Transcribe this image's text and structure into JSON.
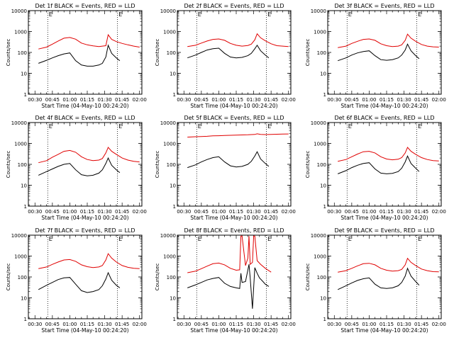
{
  "colors": {
    "events": "#000000",
    "lld": "#e00000",
    "axes": "#000000",
    "background": "#ffffff"
  },
  "shared": {
    "ylabel": "Counts/sec",
    "xlabel": "Start Time (04-May-10 00:24:20)",
    "xticks": [
      "00:30",
      "00:45",
      "01:00",
      "01:15",
      "01:30",
      "01:45",
      "02:00"
    ],
    "yticks": [
      "1",
      "10",
      "100",
      "1000",
      "10000"
    ],
    "ylog": true,
    "ylim": [
      1,
      10000
    ],
    "xlim": [
      "00:24:20",
      "02:02:00"
    ],
    "vlines": [
      "00:41",
      "01:41"
    ],
    "marker_label": "E"
  },
  "chart_data": [
    {
      "type": "line",
      "title": "Det 1f BLACK = Events, RED = LLD",
      "series": [
        {
          "x": [
            "00:33",
            "00:40",
            "00:45",
            "00:50",
            "00:55",
            "01:00",
            "01:05",
            "01:10",
            "01:15",
            "01:20",
            "01:25",
            "01:28",
            "01:31",
            "01:33",
            "01:36",
            "01:40",
            "01:45",
            "01:50",
            "01:55",
            "02:00"
          ],
          "values": [
            145,
            180,
            250,
            350,
            480,
            520,
            430,
            280,
            230,
            205,
            190,
            200,
            210,
            700,
            420,
            330,
            270,
            230,
            200,
            180
          ]
        },
        {
          "x": [
            "00:33",
            "00:40",
            "00:45",
            "00:50",
            "00:55",
            "01:00",
            "01:05",
            "01:10",
            "01:15",
            "01:20",
            "01:25",
            "01:28",
            "01:31",
            "01:33",
            "01:36",
            "01:40",
            "01:43"
          ],
          "values": [
            30,
            42,
            55,
            70,
            85,
            95,
            40,
            25,
            22,
            22,
            25,
            30,
            60,
            220,
            90,
            55,
            40
          ]
        }
      ]
    },
    {
      "type": "line",
      "title": "Det 2f BLACK = Events, RED = LLD",
      "series": [
        {
          "x": [
            "00:33",
            "00:40",
            "00:45",
            "00:50",
            "00:55",
            "01:00",
            "01:05",
            "01:10",
            "01:15",
            "01:20",
            "01:25",
            "01:28",
            "01:31",
            "01:33",
            "01:36",
            "01:40",
            "01:45",
            "01:50",
            "01:55",
            "02:00"
          ],
          "values": [
            190,
            220,
            280,
            350,
            420,
            440,
            380,
            270,
            220,
            200,
            215,
            250,
            400,
            780,
            500,
            360,
            260,
            210,
            200,
            190
          ]
        },
        {
          "x": [
            "00:33",
            "00:40",
            "00:45",
            "00:50",
            "00:55",
            "01:00",
            "01:05",
            "01:10",
            "01:15",
            "01:20",
            "01:25",
            "01:28",
            "01:31",
            "01:33",
            "01:36",
            "01:40",
            "01:43"
          ],
          "values": [
            55,
            75,
            100,
            130,
            150,
            160,
            90,
            60,
            55,
            58,
            70,
            90,
            150,
            220,
            120,
            75,
            55
          ]
        }
      ]
    },
    {
      "type": "line",
      "title": "Det 3f BLACK = Events, RED = LLD",
      "series": [
        {
          "x": [
            "00:33",
            "00:40",
            "00:45",
            "00:50",
            "00:55",
            "01:00",
            "01:05",
            "01:10",
            "01:15",
            "01:20",
            "01:25",
            "01:28",
            "01:31",
            "01:33",
            "01:36",
            "01:40",
            "01:45",
            "01:50",
            "01:55",
            "02:00"
          ],
          "values": [
            170,
            200,
            270,
            340,
            420,
            440,
            380,
            260,
            210,
            190,
            200,
            230,
            380,
            750,
            480,
            340,
            240,
            200,
            185,
            180
          ]
        },
        {
          "x": [
            "00:33",
            "00:40",
            "00:45",
            "00:50",
            "00:55",
            "01:00",
            "01:05",
            "01:10",
            "01:15",
            "01:20",
            "01:25",
            "01:28",
            "01:31",
            "01:33",
            "01:36",
            "01:40",
            "01:43"
          ],
          "values": [
            40,
            55,
            75,
            95,
            110,
            120,
            70,
            45,
            42,
            45,
            55,
            75,
            130,
            250,
            120,
            70,
            50
          ]
        }
      ]
    },
    {
      "type": "line",
      "title": "Det 4f BLACK = Events, RED = LLD",
      "series": [
        {
          "x": [
            "00:33",
            "00:40",
            "00:45",
            "00:50",
            "00:55",
            "01:00",
            "01:05",
            "01:10",
            "01:15",
            "01:20",
            "01:25",
            "01:28",
            "01:31",
            "01:33",
            "01:36",
            "01:40",
            "01:45",
            "01:50",
            "01:55",
            "02:00"
          ],
          "values": [
            120,
            150,
            220,
            300,
            420,
            460,
            380,
            230,
            170,
            150,
            160,
            190,
            350,
            650,
            420,
            300,
            200,
            160,
            140,
            130
          ]
        },
        {
          "x": [
            "00:33",
            "00:40",
            "00:45",
            "00:50",
            "00:55",
            "01:00",
            "01:05",
            "01:10",
            "01:15",
            "01:20",
            "01:25",
            "01:28",
            "01:31",
            "01:33",
            "01:36",
            "01:40",
            "01:43"
          ],
          "values": [
            30,
            45,
            60,
            80,
            100,
            110,
            55,
            32,
            28,
            30,
            38,
            55,
            110,
            200,
            90,
            55,
            40
          ]
        }
      ]
    },
    {
      "type": "line",
      "title": "Det 5f BLACK = Events, RED = LLD",
      "series": [
        {
          "x": [
            "00:33",
            "00:40",
            "00:45",
            "00:50",
            "00:55",
            "01:00",
            "01:05",
            "01:10",
            "01:15",
            "01:20",
            "01:25",
            "01:28",
            "01:31",
            "01:33",
            "01:36",
            "01:40",
            "01:45",
            "01:50",
            "01:55",
            "02:00"
          ],
          "values": [
            2000,
            2100,
            2150,
            2200,
            2300,
            2350,
            2400,
            2450,
            2500,
            2550,
            2600,
            2650,
            2700,
            2900,
            2700,
            2650,
            2700,
            2750,
            2800,
            2850
          ]
        },
        {
          "x": [
            "00:33",
            "00:40",
            "00:45",
            "00:50",
            "00:55",
            "01:00",
            "01:05",
            "01:10",
            "01:15",
            "01:20",
            "01:25",
            "01:28",
            "01:31",
            "01:33",
            "01:36",
            "01:40",
            "01:43"
          ],
          "values": [
            70,
            95,
            130,
            170,
            210,
            230,
            130,
            85,
            75,
            80,
            100,
            140,
            250,
            400,
            180,
            110,
            80
          ]
        }
      ]
    },
    {
      "type": "line",
      "title": "Det 6f BLACK = Events, RED = LLD",
      "series": [
        {
          "x": [
            "00:33",
            "00:40",
            "00:45",
            "00:50",
            "00:55",
            "01:00",
            "01:05",
            "01:10",
            "01:15",
            "01:20",
            "01:25",
            "01:28",
            "01:31",
            "01:33",
            "01:36",
            "01:40",
            "01:45",
            "01:50",
            "01:55",
            "02:00"
          ],
          "values": [
            140,
            170,
            230,
            310,
            400,
            420,
            350,
            230,
            180,
            165,
            175,
            210,
            350,
            650,
            420,
            300,
            210,
            170,
            150,
            145
          ]
        },
        {
          "x": [
            "00:33",
            "00:40",
            "00:45",
            "00:50",
            "00:55",
            "01:00",
            "01:05",
            "01:10",
            "01:15",
            "01:20",
            "01:25",
            "01:28",
            "01:31",
            "01:33",
            "01:36",
            "01:40",
            "01:43"
          ],
          "values": [
            35,
            50,
            70,
            90,
            110,
            120,
            60,
            38,
            35,
            37,
            45,
            65,
            130,
            250,
            110,
            65,
            45
          ]
        }
      ]
    },
    {
      "type": "line",
      "title": "Det 7f BLACK = Events, RED = LLD",
      "series": [
        {
          "x": [
            "00:33",
            "00:40",
            "00:45",
            "00:50",
            "00:55",
            "01:00",
            "01:05",
            "01:10",
            "01:15",
            "01:20",
            "01:25",
            "01:28",
            "01:31",
            "01:33",
            "01:36",
            "01:40",
            "01:45",
            "01:50",
            "01:55",
            "02:00"
          ],
          "values": [
            250,
            300,
            400,
            520,
            650,
            680,
            560,
            380,
            310,
            280,
            300,
            350,
            650,
            1300,
            800,
            520,
            350,
            290,
            260,
            250
          ]
        },
        {
          "x": [
            "00:33",
            "00:40",
            "00:45",
            "00:50",
            "00:55",
            "01:00",
            "01:05",
            "01:10",
            "01:15",
            "01:20",
            "01:25",
            "01:28",
            "01:31",
            "01:33",
            "01:36",
            "01:40",
            "01:43"
          ],
          "values": [
            25,
            40,
            55,
            75,
            90,
            95,
            45,
            22,
            18,
            20,
            25,
            38,
            80,
            160,
            70,
            40,
            30
          ]
        }
      ]
    },
    {
      "type": "line",
      "title": "Det 8f BLACK = Events, RED = LLD",
      "series": [
        {
          "x": [
            "00:33",
            "00:40",
            "00:45",
            "00:50",
            "00:55",
            "01:00",
            "01:05",
            "01:10",
            "01:15",
            "01:18",
            "01:19",
            "01:20",
            "01:23",
            "01:25",
            "01:26",
            "01:27",
            "01:29",
            "01:30",
            "01:31",
            "01:33",
            "01:36",
            "01:40",
            "01:45"
          ],
          "values": [
            160,
            190,
            250,
            330,
            430,
            460,
            380,
            260,
            210,
            220,
            9000,
            9000,
            350,
            800,
            9000,
            400,
            500,
            9000,
            9000,
            600,
            400,
            260,
            170
          ]
        },
        {
          "x": [
            "00:33",
            "00:40",
            "00:45",
            "00:50",
            "00:55",
            "01:00",
            "01:05",
            "01:10",
            "01:15",
            "01:18",
            "01:19",
            "01:20",
            "01:23",
            "01:26",
            "01:27",
            "01:29",
            "01:31",
            "01:33",
            "01:35",
            "01:38",
            "01:40",
            "01:43"
          ],
          "values": [
            30,
            42,
            55,
            72,
            85,
            95,
            50,
            35,
            30,
            28,
            150,
            55,
            60,
            400,
            90,
            3,
            280,
            150,
            90,
            60,
            45,
            35
          ]
        }
      ]
    },
    {
      "type": "line",
      "title": "Det 9f BLACK = Events, RED = LLD",
      "series": [
        {
          "x": [
            "00:33",
            "00:40",
            "00:45",
            "00:50",
            "00:55",
            "01:00",
            "01:05",
            "01:10",
            "01:15",
            "01:20",
            "01:25",
            "01:28",
            "01:31",
            "01:33",
            "01:36",
            "01:40",
            "01:45",
            "01:50",
            "01:55",
            "02:00"
          ],
          "values": [
            170,
            200,
            260,
            340,
            430,
            450,
            380,
            260,
            210,
            190,
            200,
            230,
            380,
            780,
            500,
            350,
            240,
            200,
            180,
            175
          ]
        },
        {
          "x": [
            "00:33",
            "00:40",
            "00:45",
            "00:50",
            "00:55",
            "01:00",
            "01:05",
            "01:10",
            "01:15",
            "01:20",
            "01:25",
            "01:28",
            "01:31",
            "01:33",
            "01:36",
            "01:40",
            "01:43"
          ],
          "values": [
            25,
            38,
            52,
            68,
            82,
            90,
            45,
            30,
            28,
            30,
            38,
            55,
            110,
            260,
            110,
            60,
            40
          ]
        }
      ]
    }
  ]
}
